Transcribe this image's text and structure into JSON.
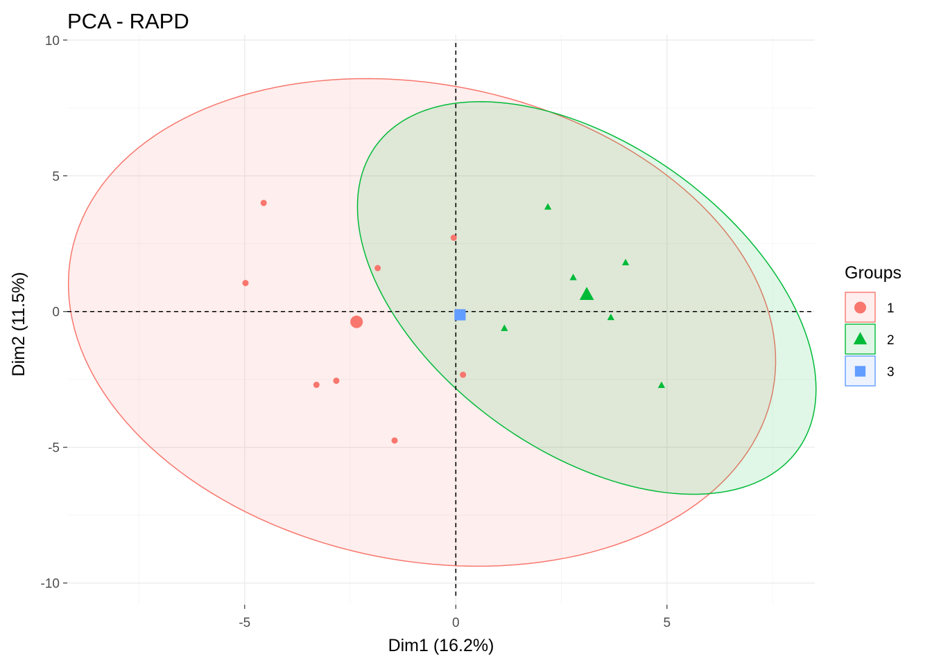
{
  "chart_data": {
    "type": "scatter",
    "title": "PCA - RAPD",
    "xlabel": "Dim1 (16.2%)",
    "ylabel": "Dim2 (11.5%)",
    "xlim": [
      -9.2,
      8.5
    ],
    "ylim": [
      -10.8,
      10.2
    ],
    "x_ticks": [
      -5,
      0,
      5
    ],
    "x_tick_labels": [
      "-5",
      "0",
      "5"
    ],
    "y_ticks": [
      -10,
      -5,
      0,
      5,
      10
    ],
    "y_tick_labels": [
      "-10",
      "-5",
      "0",
      "5",
      "10"
    ],
    "grid": true,
    "reference_lines": {
      "x": 0,
      "y": 0,
      "style": "dashed"
    },
    "legend": {
      "title": "Groups",
      "position": "right"
    },
    "series": [
      {
        "name": "1",
        "color": "#F8766D",
        "shape": "circle",
        "points": [
          {
            "x": -4.55,
            "y": 4.0
          },
          {
            "x": -4.98,
            "y": 1.05
          },
          {
            "x": -1.85,
            "y": 1.6
          },
          {
            "x": -0.05,
            "y": 2.72
          },
          {
            "x": -3.3,
            "y": -2.7
          },
          {
            "x": -2.83,
            "y": -2.55
          },
          {
            "x": -1.45,
            "y": -4.75
          },
          {
            "x": 0.17,
            "y": -2.33
          }
        ],
        "centroid": {
          "x": -2.35,
          "y": -0.38
        },
        "ellipse": {
          "cx": -0.8,
          "cy": -0.4,
          "rx": 7.9,
          "ry": 9.4,
          "angle": 33
        }
      },
      {
        "name": "2",
        "color": "#00BA38",
        "shape": "triangle",
        "points": [
          {
            "x": 2.18,
            "y": 3.85
          },
          {
            "x": 4.02,
            "y": 1.8
          },
          {
            "x": 2.78,
            "y": 1.25
          },
          {
            "x": 3.67,
            "y": -0.22
          },
          {
            "x": 1.15,
            "y": -0.62
          },
          {
            "x": 4.87,
            "y": -2.72
          }
        ],
        "centroid": {
          "x": 3.1,
          "y": 0.62
        },
        "ellipse": {
          "cx": 3.1,
          "cy": 0.5,
          "rx": 4.4,
          "ry": 7.9,
          "angle": 29
        }
      },
      {
        "name": "3",
        "color": "#619CFF",
        "shape": "square",
        "points": [],
        "centroid": {
          "x": 0.1,
          "y": -0.12
        }
      }
    ]
  }
}
